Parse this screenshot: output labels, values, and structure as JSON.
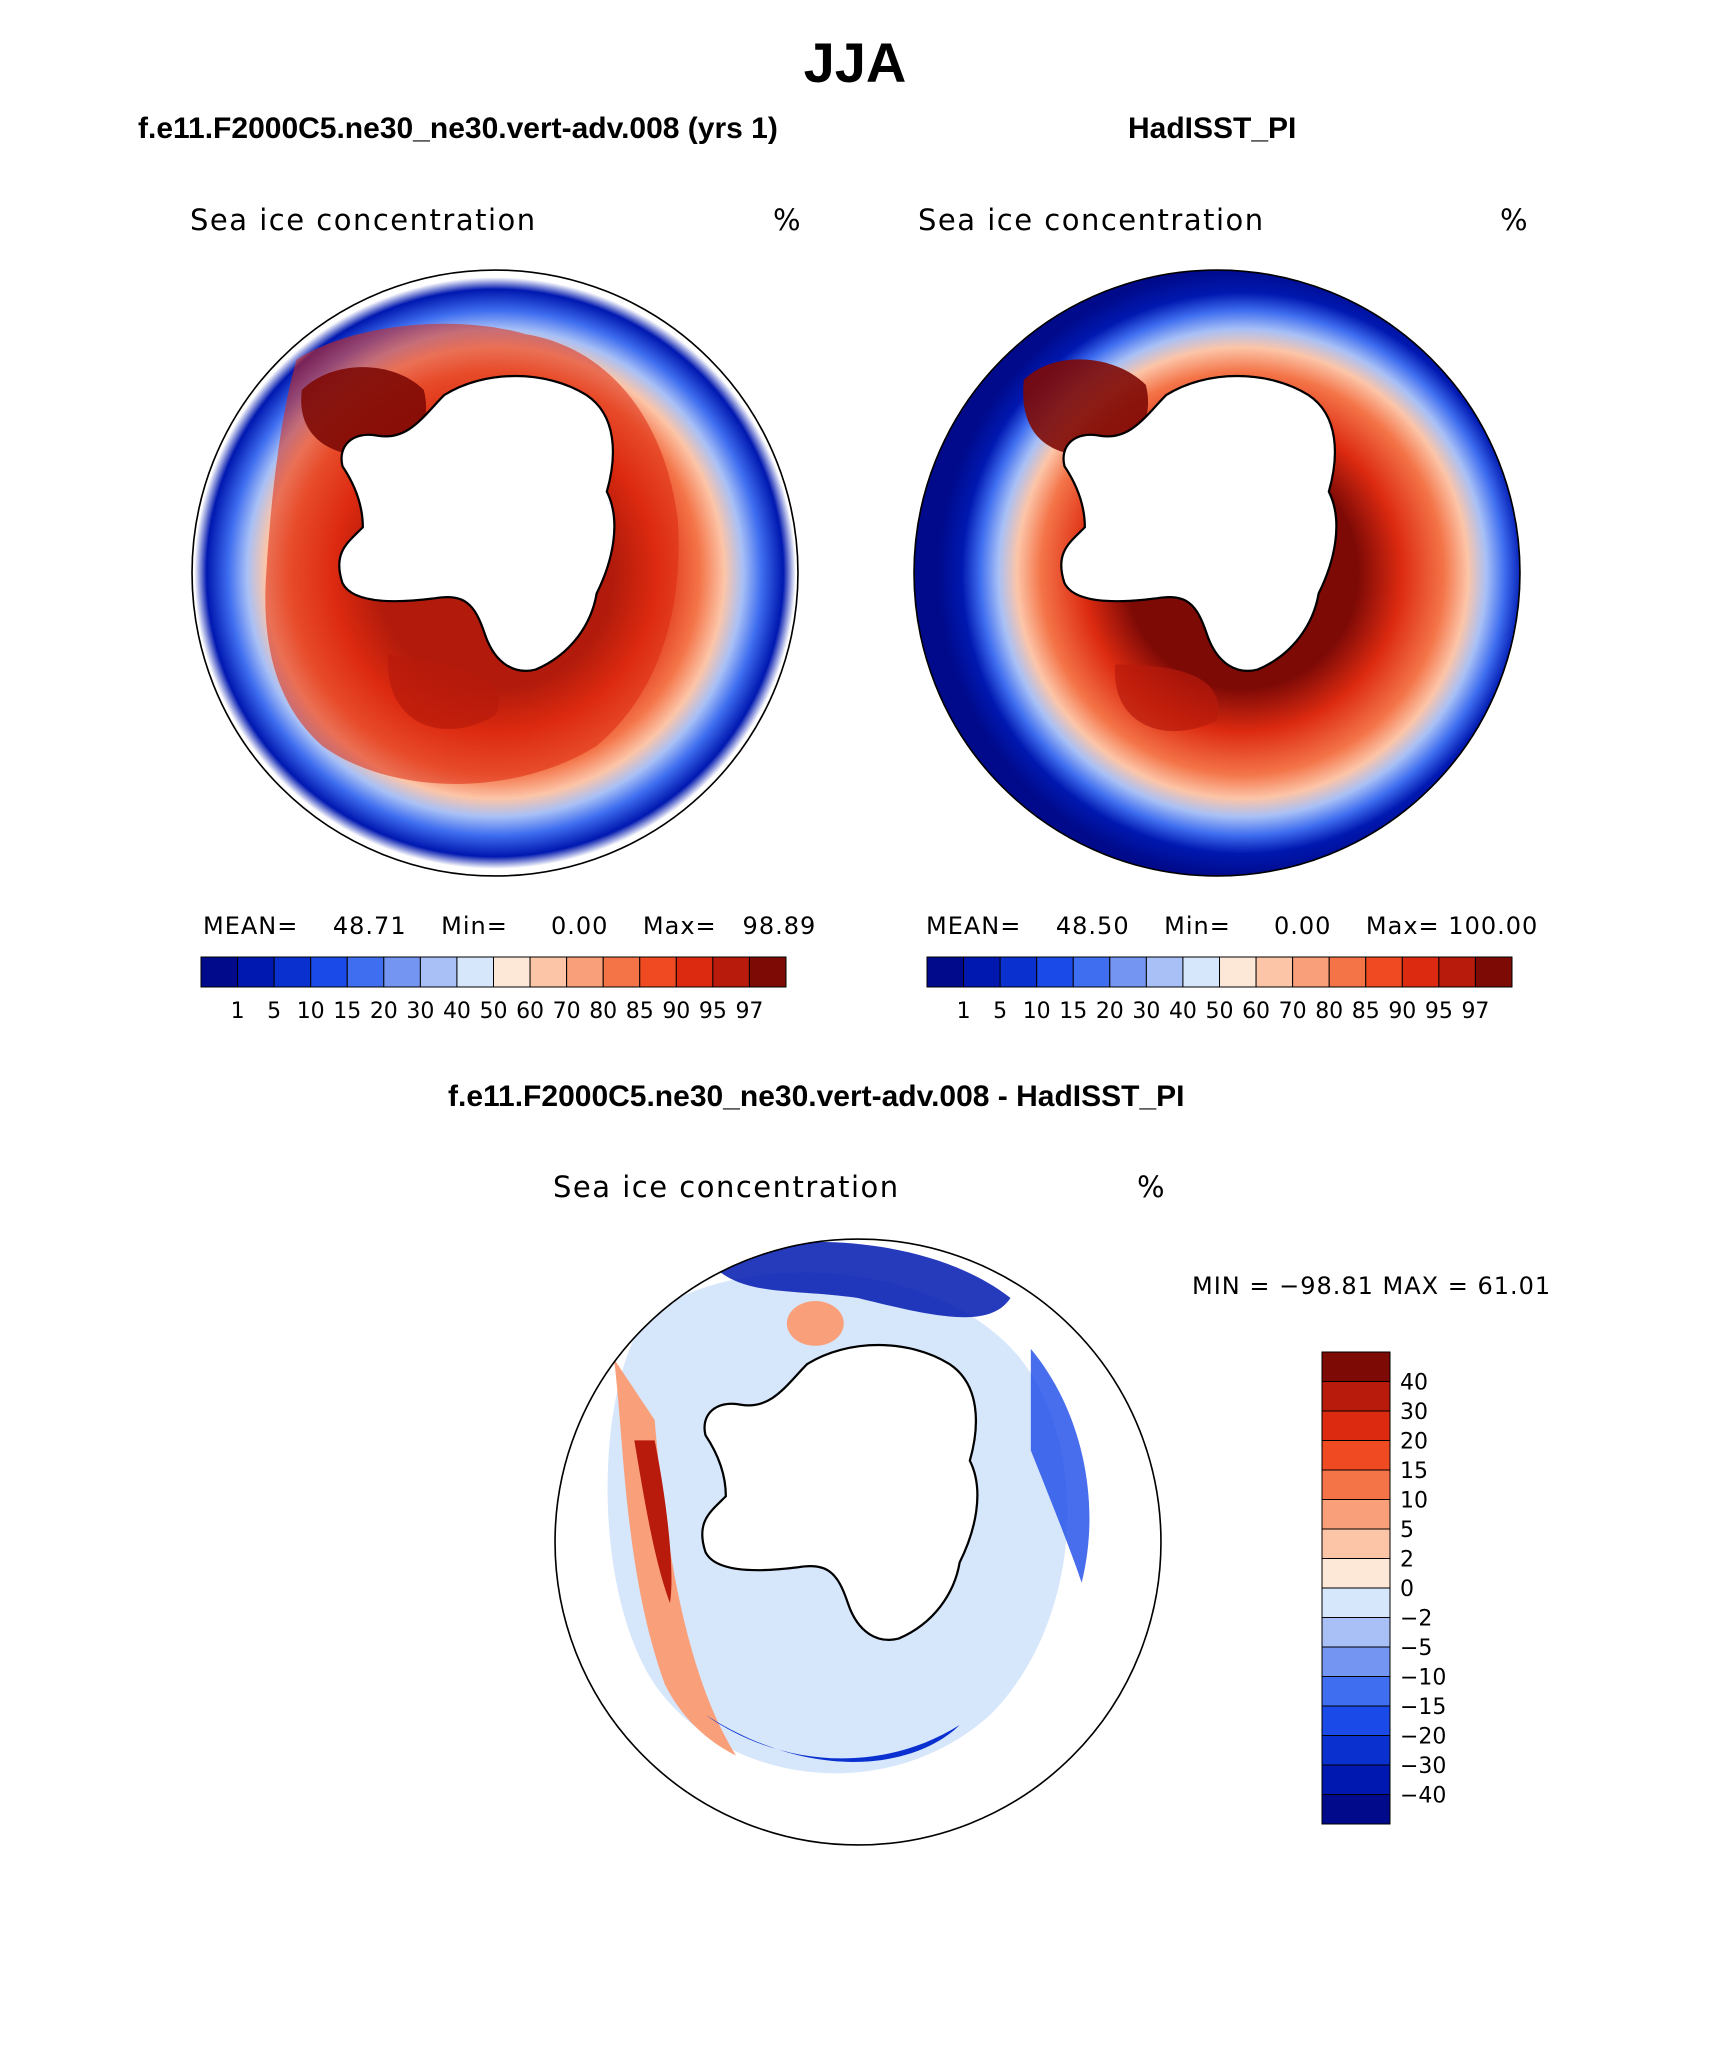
{
  "figure": {
    "title": "JJA",
    "panels": [
      {
        "title": "f.e11.F2000C5.ne30_ne30.vert-adv.008 (yrs 1)",
        "variable": "Sea ice concentration",
        "units": "%",
        "stats": {
          "mean_label": "MEAN=",
          "mean": "48.71",
          "min_label": "Min=",
          "min": "0.00",
          "max_label": "Max=",
          "max": "98.89"
        }
      },
      {
        "title": "HadISST_PI",
        "variable": "Sea ice concentration",
        "units": "%",
        "stats": {
          "mean_label": "MEAN=",
          "mean": "48.50",
          "min_label": "Min=",
          "min": "0.00",
          "max_label": "Max=",
          "max": "100.00"
        }
      }
    ],
    "diff": {
      "title": "f.e11.F2000C5.ne30_ne30.vert-adv.008 - HadISST_PI",
      "variable": "Sea ice concentration",
      "units": "%",
      "minmax": "MIN = −98.81  MAX =   61.01"
    }
  },
  "colorbars": {
    "concentration": {
      "labels": [
        "1",
        "5",
        "10",
        "15",
        "20",
        "30",
        "40",
        "50",
        "60",
        "70",
        "80",
        "85",
        "90",
        "95",
        "97"
      ],
      "colors": [
        "#000a8a",
        "#0018b0",
        "#0a30d0",
        "#1a4ae8",
        "#3f6ef0",
        "#7595f2",
        "#a8c0f6",
        "#d6e6fb",
        "#fde8d8",
        "#fcc5a8",
        "#f9a07a",
        "#f47448",
        "#ef4a22",
        "#dc2a10",
        "#b81a0c",
        "#7e0a06"
      ]
    },
    "difference": {
      "labels": [
        "40",
        "30",
        "20",
        "15",
        "10",
        "5",
        "2",
        "0",
        "−2",
        "−5",
        "−10",
        "−15",
        "−20",
        "−30",
        "−40"
      ],
      "colors": [
        "#7e0a06",
        "#b81a0c",
        "#dc2a10",
        "#ef4a22",
        "#f47448",
        "#f9a07a",
        "#fcc5a8",
        "#fde8d8",
        "#d6e6fb",
        "#a8c0f6",
        "#7595f2",
        "#3f6ef0",
        "#1a4ae8",
        "#0a30d0",
        "#0018b0",
        "#000a8a"
      ]
    }
  },
  "icons": {
    "maps": [
      "antarctica-landmass-icon",
      "sea-ice-field-icon"
    ]
  }
}
